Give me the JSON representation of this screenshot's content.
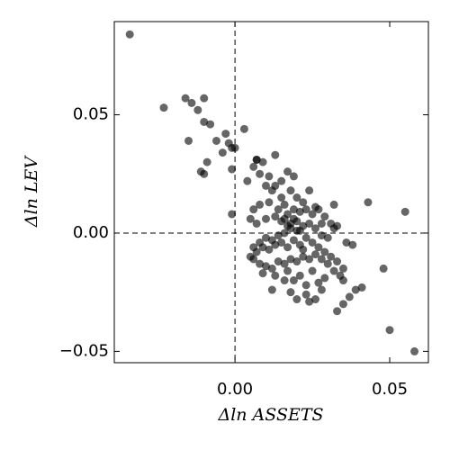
{
  "chart_data": {
    "type": "scatter",
    "xlabel": "Δln ASSETS",
    "ylabel": "Δln LEV",
    "xlim": [
      -0.039,
      0.0625
    ],
    "ylim": [
      -0.0548,
      0.0894
    ],
    "xticks": [
      {
        "value": 0,
        "label": "0.00"
      },
      {
        "value": 0.05,
        "label": "0.05"
      }
    ],
    "yticks": [
      {
        "value": -0.05,
        "label": "−0.05"
      },
      {
        "value": 0,
        "label": "0.00"
      },
      {
        "value": 0.05,
        "label": "0.05"
      }
    ],
    "hlines": [
      0
    ],
    "vlines": [
      0
    ],
    "color": "#000000",
    "alpha": 0.6,
    "x": [
      -0.034,
      -0.023,
      -0.016,
      -0.014,
      -0.012,
      -0.01,
      -0.01,
      -0.008,
      -0.015,
      -0.006,
      -0.003,
      -0.004,
      -0.002,
      -0.001,
      0.0,
      -0.001,
      0.003,
      -0.009,
      -0.011,
      -0.01,
      -0.001,
      0.004,
      0.007,
      0.013,
      0.043,
      0.055,
      0.048,
      0.05,
      0.058,
      0.035,
      0.033,
      0.041,
      0.039,
      0.037,
      0.032,
      0.012,
      0.02,
      0.023,
      0.026,
      0.024,
      0.028,
      0.018,
      0.016,
      0.006,
      0.008,
      0.01,
      0.012,
      0.015,
      0.017,
      0.019,
      0.018,
      0.02,
      0.022,
      0.016,
      0.014,
      0.011,
      0.008,
      0.006,
      0.005,
      0.007,
      0.01,
      0.013,
      0.015,
      0.017,
      0.019,
      0.021,
      0.023,
      0.025,
      0.027,
      0.029,
      0.031,
      0.032,
      0.03,
      0.028,
      0.026,
      0.024,
      0.022,
      0.02,
      0.018,
      0.016,
      0.014,
      0.012,
      0.01,
      0.008,
      0.006,
      0.005,
      0.007,
      0.009,
      0.011,
      0.013,
      0.015,
      0.017,
      0.019,
      0.021,
      0.023,
      0.025,
      0.027,
      0.029,
      0.031,
      0.033,
      0.035,
      0.034,
      0.032,
      0.03,
      0.028,
      0.026,
      0.024,
      0.022,
      0.02,
      0.018,
      0.016,
      0.014,
      0.012,
      0.01,
      0.008,
      0.006,
      0.009,
      0.013,
      0.017,
      0.021,
      0.025,
      0.029,
      0.027,
      0.023,
      0.019,
      0.022,
      0.018,
      0.02,
      0.016,
      0.019,
      0.021,
      0.017,
      0.015,
      0.013,
      0.011,
      0.009,
      0.007,
      0.024,
      0.026,
      0.028,
      0.033,
      0.036,
      0.038,
      0.035
    ],
    "values": [
      0.084,
      0.053,
      0.057,
      0.055,
      0.052,
      0.057,
      0.047,
      0.046,
      0.039,
      0.039,
      0.042,
      0.034,
      0.038,
      0.036,
      0.036,
      0.027,
      0.044,
      0.03,
      0.026,
      0.025,
      0.008,
      0.022,
      0.031,
      0.033,
      0.013,
      0.009,
      -0.015,
      -0.041,
      -0.05,
      -0.03,
      -0.033,
      -0.023,
      -0.024,
      -0.027,
      0.012,
      -0.024,
      -0.028,
      -0.026,
      -0.028,
      -0.029,
      -0.024,
      -0.025,
      -0.02,
      0.028,
      0.025,
      0.02,
      0.018,
      0.022,
      0.026,
      0.024,
      0.018,
      0.015,
      0.013,
      0.012,
      0.01,
      0.013,
      0.012,
      0.01,
      0.006,
      0.004,
      0.006,
      0.007,
      0.005,
      0.008,
      0.006,
      0.009,
      0.01,
      0.008,
      0.01,
      0.007,
      0.004,
      0.002,
      -0.002,
      -0.001,
      0.002,
      0.004,
      0.003,
      0.001,
      0.002,
      0.0,
      -0.001,
      -0.003,
      -0.002,
      -0.004,
      -0.006,
      -0.01,
      -0.008,
      -0.006,
      -0.007,
      -0.005,
      -0.004,
      -0.006,
      -0.003,
      -0.005,
      -0.002,
      -0.004,
      -0.006,
      -0.008,
      -0.01,
      -0.012,
      -0.015,
      -0.018,
      -0.016,
      -0.013,
      -0.011,
      -0.009,
      -0.011,
      -0.01,
      -0.012,
      -0.011,
      -0.013,
      -0.012,
      -0.015,
      -0.014,
      -0.013,
      -0.011,
      -0.017,
      -0.018,
      -0.016,
      -0.018,
      -0.016,
      -0.019,
      -0.021,
      -0.022,
      -0.02,
      -0.007,
      0.004,
      0.005,
      0.006,
      0.01,
      0.001,
      0.003,
      0.015,
      0.02,
      0.024,
      0.03,
      0.031,
      0.018,
      0.011,
      0.004,
      0.003,
      -0.004,
      -0.005,
      -0.02
    ]
  }
}
